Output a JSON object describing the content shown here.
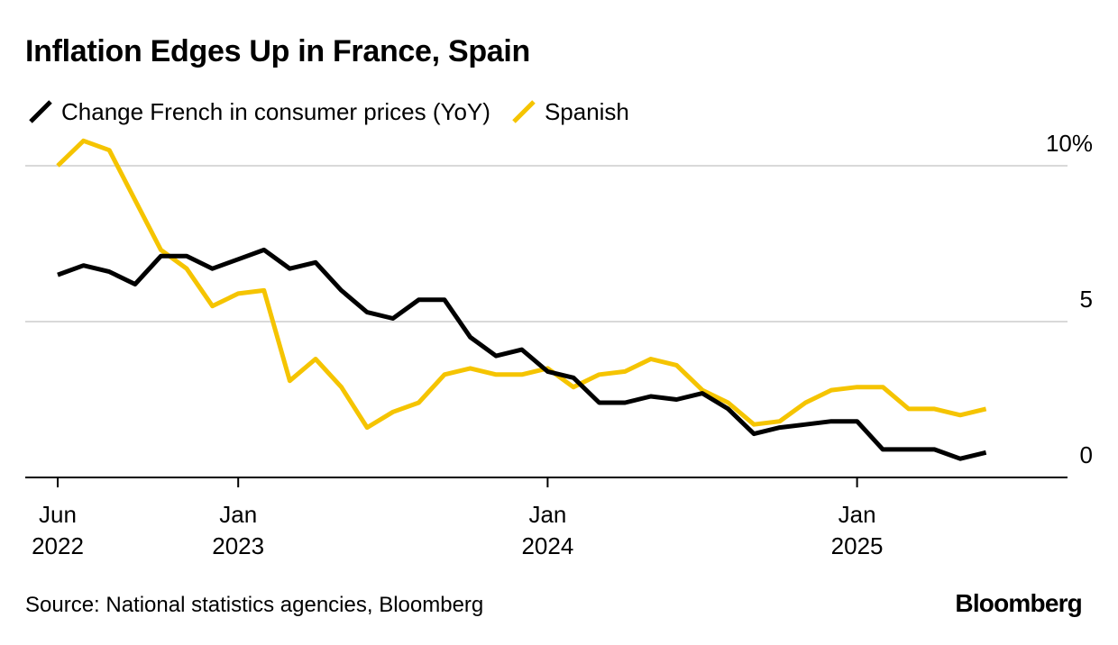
{
  "header": {
    "title": "Inflation Edges Up in France, Spain"
  },
  "legend": {
    "items": [
      {
        "label": "Change French in consumer prices (YoY)",
        "color": "#000000"
      },
      {
        "label": "Spanish",
        "color": "#f5c400"
      }
    ]
  },
  "footer": {
    "source": "Source: National statistics agencies, Bloomberg",
    "brand": "Bloomberg"
  },
  "chart_data": {
    "type": "line",
    "title": "Inflation Edges Up in France, Spain",
    "xlabel": "",
    "ylabel": "",
    "ylim": [
      0,
      10
    ],
    "yticks": [
      {
        "value": 10,
        "label": "10%"
      },
      {
        "value": 5,
        "label": "5"
      },
      {
        "value": 0,
        "label": "0"
      }
    ],
    "xticks": [
      {
        "date": "2022-06",
        "line1": "Jun",
        "line2": "2022"
      },
      {
        "date": "2023-01",
        "line1": "Jan",
        "line2": "2023"
      },
      {
        "date": "2024-01",
        "line1": "Jan",
        "line2": "2024"
      },
      {
        "date": "2025-01",
        "line1": "Jan",
        "line2": "2025"
      }
    ],
    "grid": true,
    "legend_position": "top-left",
    "x": [
      "2022-06",
      "2022-07",
      "2022-08",
      "2022-09",
      "2022-10",
      "2022-11",
      "2022-12",
      "2023-01",
      "2023-02",
      "2023-03",
      "2023-04",
      "2023-05",
      "2023-06",
      "2023-07",
      "2023-08",
      "2023-09",
      "2023-10",
      "2023-11",
      "2023-12",
      "2024-01",
      "2024-02",
      "2024-03",
      "2024-04",
      "2024-05",
      "2024-06",
      "2024-07",
      "2024-08",
      "2024-09",
      "2024-10",
      "2024-11",
      "2024-12",
      "2025-01",
      "2025-02",
      "2025-03",
      "2025-04",
      "2025-05",
      "2025-06",
      "2025-07"
    ],
    "series": [
      {
        "name": "Change French in consumer prices (YoY)",
        "color": "#000000",
        "values": [
          6.5,
          6.8,
          6.6,
          6.2,
          7.1,
          7.1,
          6.7,
          7.0,
          7.3,
          6.7,
          6.9,
          6.0,
          5.3,
          5.1,
          5.7,
          5.7,
          4.5,
          3.9,
          4.1,
          3.4,
          3.2,
          2.4,
          2.4,
          2.6,
          2.5,
          2.7,
          2.2,
          1.4,
          1.6,
          1.7,
          1.8,
          1.8,
          0.9,
          0.9,
          0.9,
          0.6,
          0.8,
          null
        ]
      },
      {
        "name": "Spanish",
        "color": "#f5c400",
        "values": [
          10.0,
          10.8,
          10.5,
          8.9,
          7.3,
          6.7,
          5.5,
          5.9,
          6.0,
          3.1,
          3.8,
          2.9,
          1.6,
          2.1,
          2.4,
          3.3,
          3.5,
          3.3,
          3.3,
          3.5,
          2.9,
          3.3,
          3.4,
          3.8,
          3.6,
          2.8,
          2.4,
          1.7,
          1.8,
          2.4,
          2.8,
          2.9,
          2.9,
          2.2,
          2.2,
          2.0,
          2.2,
          null
        ]
      }
    ]
  }
}
